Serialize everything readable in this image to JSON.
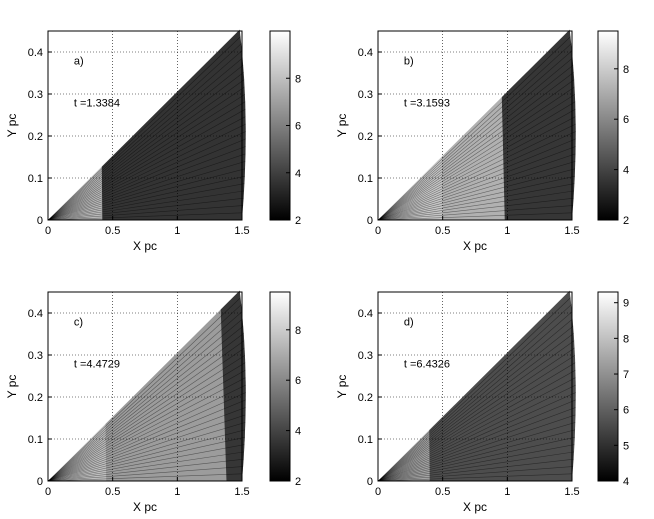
{
  "chart_data": [
    {
      "type": "heatmap",
      "panel_label": "a)",
      "time_annotation": "t =1.3384",
      "xlabel": "X pc",
      "ylabel": "Y pc",
      "xlim": [
        0,
        1.5
      ],
      "ylim": [
        0,
        0.45
      ],
      "x_ticks": [
        "0",
        "0.5",
        "1",
        "1.5"
      ],
      "y_ticks": [
        "0",
        "0.1",
        "0.2",
        "0.3",
        "0.4"
      ],
      "grid": true,
      "colorbar": {
        "range": [
          2,
          10
        ],
        "ticks": [
          "2",
          "4",
          "6",
          "8"
        ]
      },
      "domain": {
        "apex_angle_deg": 17,
        "outer_radius_pc": 1.55
      },
      "regions": [
        {
          "r_start_pc": 0.0,
          "r_end_pc": 0.42,
          "value": 7.8
        },
        {
          "r_start_pc": 0.42,
          "r_end_pc": 1.55,
          "value": 3.6
        }
      ]
    },
    {
      "type": "heatmap",
      "panel_label": "b)",
      "time_annotation": "t =3.1593",
      "xlabel": "X pc",
      "ylabel": "Y pc",
      "xlim": [
        0,
        1.5
      ],
      "ylim": [
        0,
        0.45
      ],
      "x_ticks": [
        "0",
        "0.5",
        "1",
        "1.5"
      ],
      "y_ticks": [
        "0",
        "0.1",
        "0.2",
        "0.3",
        "0.4"
      ],
      "grid": true,
      "colorbar": {
        "range": [
          2,
          9.5
        ],
        "ticks": [
          "2",
          "4",
          "6",
          "8"
        ]
      },
      "domain": {
        "apex_angle_deg": 17,
        "outer_radius_pc": 1.55
      },
      "regions": [
        {
          "r_start_pc": 0.0,
          "r_end_pc": 0.5,
          "value": 7.8
        },
        {
          "r_start_pc": 0.5,
          "r_end_pc": 0.98,
          "value": 7.2
        },
        {
          "r_start_pc": 0.98,
          "r_end_pc": 1.55,
          "value": 3.6
        }
      ]
    },
    {
      "type": "heatmap",
      "panel_label": "c)",
      "time_annotation": "t =4.4729",
      "xlabel": "X pc",
      "ylabel": "Y pc",
      "xlim": [
        0,
        1.5
      ],
      "ylim": [
        0,
        0.45
      ],
      "x_ticks": [
        "0",
        "0.5",
        "1",
        "1.5"
      ],
      "y_ticks": [
        "0",
        "0.1",
        "0.2",
        "0.3",
        "0.4"
      ],
      "grid": true,
      "colorbar": {
        "range": [
          2,
          9.5
        ],
        "ticks": [
          "2",
          "4",
          "6",
          "8"
        ]
      },
      "domain": {
        "apex_angle_deg": 17,
        "outer_radius_pc": 1.55
      },
      "regions": [
        {
          "r_start_pc": 0.0,
          "r_end_pc": 0.45,
          "value": 7.6
        },
        {
          "r_start_pc": 0.45,
          "r_end_pc": 1.38,
          "value": 6.6
        },
        {
          "r_start_pc": 1.38,
          "r_end_pc": 1.55,
          "value": 3.6
        }
      ]
    },
    {
      "type": "heatmap",
      "panel_label": "d)",
      "time_annotation": "t =6.4326",
      "xlabel": "X pc",
      "ylabel": "Y pc",
      "xlim": [
        0,
        1.5
      ],
      "ylim": [
        0,
        0.45
      ],
      "x_ticks": [
        "0",
        "0.5",
        "1",
        "1.5"
      ],
      "y_ticks": [
        "0",
        "0.1",
        "0.2",
        "0.3",
        "0.4"
      ],
      "grid": true,
      "colorbar": {
        "range": [
          4,
          9.3
        ],
        "ticks": [
          "4",
          "5",
          "6",
          "7",
          "8",
          "9"
        ]
      },
      "domain": {
        "apex_angle_deg": 17,
        "outer_radius_pc": 1.55
      },
      "regions": [
        {
          "r_start_pc": 0.0,
          "r_end_pc": 0.4,
          "value": 7.4
        },
        {
          "r_start_pc": 0.4,
          "r_end_pc": 1.55,
          "value": 5.6
        }
      ]
    }
  ]
}
